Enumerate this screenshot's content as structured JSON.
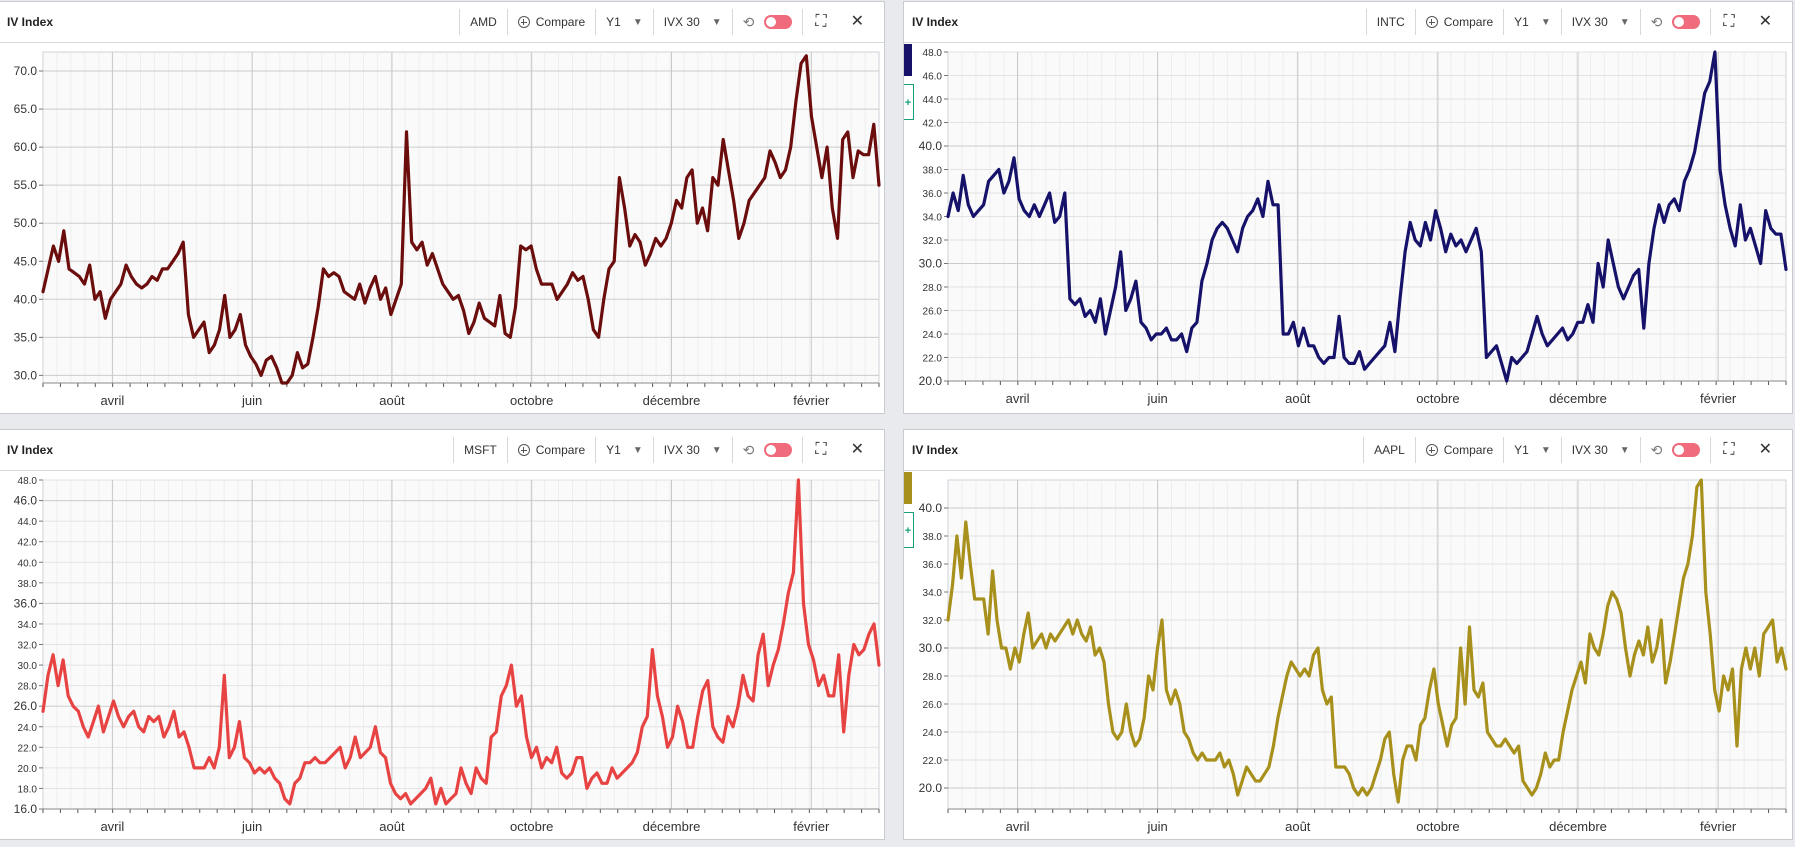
{
  "colors": {
    "amd": "#6b0d0d",
    "intc": "#16126a",
    "msft": "#e84343",
    "aapl": "#a8901c"
  },
  "icons": [
    "compare-plus-icon",
    "caret-down-icon",
    "sync-off-icon",
    "toggle-switch",
    "fullscreen-icon",
    "close-icon"
  ],
  "panels": [
    {
      "id": "amd",
      "title": "IV Index",
      "ticker": "AMD",
      "compare_label": "Compare",
      "period": "Y1",
      "measure": "IVX 30"
    },
    {
      "id": "intc",
      "title": "IV Index",
      "ticker": "INTC",
      "compare_label": "Compare",
      "period": "Y1",
      "measure": "IVX 30"
    },
    {
      "id": "msft",
      "title": "IV Index",
      "ticker": "MSFT",
      "compare_label": "Compare",
      "period": "Y1",
      "measure": "IVX 30"
    },
    {
      "id": "aapl",
      "title": "IV Index",
      "ticker": "AAPL",
      "compare_label": "Compare",
      "period": "Y1",
      "measure": "IVX 30"
    }
  ],
  "chart_data": [
    {
      "type": "line",
      "series": [
        {
          "name": "AMD"
        }
      ],
      "x_tick_labels": [
        "avril",
        "juin",
        "août",
        "octobre",
        "décembre",
        "février"
      ],
      "ylim": [
        29.0,
        72.5
      ],
      "y_tick_labels": [
        "30.0",
        "35.0",
        "40.0",
        "45.0",
        "50.0",
        "55.0",
        "60.0",
        "65.0",
        "70.0"
      ],
      "grid": true,
      "values": [
        41,
        44,
        47,
        45,
        49,
        44,
        43.5,
        43,
        42,
        44.5,
        40,
        41,
        37.5,
        40,
        41,
        42,
        44.5,
        43,
        42,
        41.5,
        42,
        43,
        42.5,
        44,
        44,
        45,
        46,
        47.5,
        38,
        35,
        36,
        37,
        33,
        34,
        36,
        40.5,
        35,
        36,
        38,
        34,
        32.5,
        31.5,
        30,
        32,
        32.5,
        31,
        29,
        29,
        30,
        33,
        31,
        31.5,
        35,
        39,
        44,
        43,
        43.5,
        43,
        41,
        40.5,
        40,
        42,
        39.5,
        41.5,
        43,
        40,
        41.5,
        38,
        40,
        42,
        62,
        47.5,
        46.5,
        47.5,
        44.5,
        46,
        44,
        42,
        41,
        40,
        40.5,
        38.5,
        35.5,
        37,
        39.5,
        37.5,
        37,
        36.5,
        40.5,
        35.5,
        35,
        39,
        47,
        46.5,
        47,
        44,
        42,
        42,
        42,
        40,
        41,
        42,
        43.5,
        42.5,
        43,
        40,
        36,
        35,
        40,
        44,
        45,
        56,
        52,
        47,
        48.5,
        47.5,
        44.5,
        46,
        48,
        47,
        48,
        50,
        53,
        52,
        56,
        57,
        50,
        52,
        49,
        56,
        55,
        61,
        57,
        53,
        48,
        50,
        53,
        54,
        55,
        56,
        59.5,
        58,
        56,
        57,
        60,
        66,
        71,
        72,
        64,
        60,
        56,
        60,
        52,
        48,
        61,
        62,
        56,
        59.5,
        59,
        59,
        63,
        55
      ]
    },
    {
      "type": "line",
      "series": [
        {
          "name": "INTC"
        }
      ],
      "x_tick_labels": [
        "avril",
        "juin",
        "août",
        "octobre",
        "décembre",
        "février"
      ],
      "ylim": [
        20.0,
        48.0
      ],
      "y_tick_labels": [
        "20.0",
        "22.0",
        "24.0",
        "26.0",
        "28.0",
        "30.0",
        "32.0",
        "34.0",
        "36.0",
        "38.0",
        "40.0",
        "42.0",
        "44.0",
        "46.0",
        "48.0"
      ],
      "grid": true,
      "values": [
        34,
        36,
        34.5,
        37.5,
        35,
        34,
        34.5,
        35,
        37,
        37.5,
        38,
        36,
        37,
        39,
        35.5,
        34.5,
        34,
        35,
        34,
        35,
        36,
        33.5,
        34,
        36,
        27,
        26.5,
        27,
        25.5,
        26,
        25,
        27,
        24,
        26,
        28,
        31,
        26,
        27,
        28.5,
        25,
        24.5,
        23.5,
        24,
        24,
        24.5,
        23.5,
        23.5,
        24,
        22.5,
        24.5,
        25,
        28.5,
        30,
        32,
        33,
        33.5,
        33,
        32,
        31,
        33,
        34,
        34.5,
        35.5,
        34,
        37,
        35,
        35,
        24,
        24,
        25,
        23,
        24.5,
        23,
        23,
        22,
        21.5,
        22,
        22,
        25.5,
        22,
        21.5,
        21.5,
        22.5,
        21,
        21.5,
        22,
        22.5,
        23,
        25,
        22.5,
        27,
        31,
        33.5,
        32,
        31.5,
        33.5,
        32,
        34.5,
        33,
        31,
        32.5,
        31.5,
        32,
        31,
        32,
        33,
        31,
        22,
        22.5,
        23,
        21.5,
        20,
        22,
        21.5,
        22,
        22.5,
        24,
        25.5,
        24,
        23,
        23.5,
        24,
        24.5,
        23.5,
        24,
        25,
        25,
        26.5,
        25,
        30,
        28,
        32,
        30,
        28,
        27,
        28,
        29,
        29.5,
        24.5,
        30,
        33,
        35,
        33.5,
        35,
        35.5,
        34.5,
        37,
        38,
        39.5,
        42,
        44.5,
        45.5,
        48,
        38,
        35,
        33,
        31.5,
        35,
        32,
        33,
        31.5,
        30,
        34.5,
        33,
        32.5,
        32.5,
        29.5
      ]
    },
    {
      "type": "line",
      "series": [
        {
          "name": "MSFT"
        }
      ],
      "x_tick_labels": [
        "avril",
        "juin",
        "août",
        "octobre",
        "décembre",
        "février"
      ],
      "ylim": [
        16.0,
        48.0
      ],
      "y_tick_labels": [
        "16.0",
        "18.0",
        "20.0",
        "22.0",
        "24.0",
        "26.0",
        "28.0",
        "30.0",
        "32.0",
        "34.0",
        "36.0",
        "38.0",
        "40.0",
        "42.0",
        "44.0",
        "46.0",
        "48.0"
      ],
      "grid": true,
      "values": [
        25.5,
        29,
        31,
        28,
        30.5,
        27,
        26,
        25.5,
        24,
        23,
        24.5,
        26,
        23.5,
        25,
        26.5,
        25,
        24,
        25,
        25.5,
        24,
        23.5,
        25,
        24.5,
        25,
        23,
        24,
        25.5,
        23,
        23.5,
        22,
        20,
        20,
        20,
        21,
        20,
        22,
        29,
        21,
        22,
        24.5,
        21,
        20.5,
        19.5,
        20,
        19.5,
        20,
        19,
        18.5,
        17,
        16.5,
        18.5,
        19,
        20.5,
        20.5,
        21,
        20.5,
        20.5,
        21,
        21.5,
        22,
        20,
        21,
        23,
        21,
        21.5,
        22,
        24,
        21.5,
        21,
        18.5,
        17.5,
        17,
        17.5,
        16.5,
        17,
        17.5,
        18,
        19,
        16.5,
        18,
        16.5,
        17,
        17.5,
        20,
        18.5,
        17.5,
        20,
        19,
        18.5,
        23,
        23.5,
        27,
        28,
        30,
        26,
        27,
        23,
        21,
        22,
        20,
        21,
        20.5,
        22,
        19.5,
        19,
        19.5,
        21,
        21,
        18,
        19,
        19.5,
        18.5,
        18.5,
        20,
        19,
        19.5,
        20,
        20.5,
        21.5,
        24,
        25,
        31.5,
        27,
        25,
        22,
        23,
        26,
        24.5,
        22,
        22,
        25,
        27.5,
        28.5,
        24,
        23,
        22.5,
        25,
        24,
        26,
        29,
        27,
        26.5,
        31,
        33,
        28,
        30,
        31.5,
        34,
        37,
        39,
        48,
        36,
        32,
        30.5,
        28,
        29,
        27,
        27,
        31,
        23.5,
        29,
        32,
        31,
        31.5,
        33,
        34,
        30
      ]
    },
    {
      "type": "line",
      "series": [
        {
          "name": "AAPL"
        }
      ],
      "x_tick_labels": [
        "avril",
        "juin",
        "août",
        "octobre",
        "décembre",
        "février"
      ],
      "ylim": [
        18.5,
        42.0
      ],
      "y_tick_labels": [
        "20.0",
        "22.0",
        "24.0",
        "26.0",
        "28.0",
        "30.0",
        "32.0",
        "34.0",
        "36.0",
        "38.0",
        "40.0"
      ],
      "grid": true,
      "values": [
        32,
        34.5,
        38,
        35,
        39,
        36,
        33.5,
        33.5,
        33.5,
        31,
        35.5,
        32,
        30,
        30,
        28.5,
        30,
        29,
        31,
        32.5,
        30,
        30.5,
        31,
        30,
        31,
        30.5,
        31,
        31.5,
        32,
        31,
        32,
        31,
        30.5,
        31.5,
        29.5,
        30,
        29,
        26,
        24,
        23.5,
        24,
        26,
        24,
        23,
        23.5,
        25,
        28,
        27,
        30,
        32,
        27,
        26,
        27,
        26,
        24,
        23.5,
        22.5,
        22,
        22.5,
        22,
        22,
        22,
        22.5,
        21.5,
        22,
        21,
        19.5,
        20.5,
        21.5,
        21,
        20.5,
        20.5,
        21,
        21.5,
        23,
        25,
        26.5,
        28,
        29,
        28.5,
        28,
        28.5,
        28,
        29.5,
        30,
        27,
        26,
        26.5,
        21.5,
        21.5,
        21.5,
        21,
        20,
        19.5,
        20,
        19.5,
        20,
        21,
        22,
        23.5,
        24,
        21,
        19,
        22,
        23,
        23,
        22,
        24.5,
        25,
        27,
        28.5,
        26,
        24.5,
        23,
        24.5,
        25,
        30,
        26,
        31.5,
        27,
        26.5,
        27.5,
        24,
        23.5,
        23,
        23,
        23.5,
        23,
        22.5,
        23,
        20.5,
        20,
        19.5,
        20,
        21,
        22.5,
        21.5,
        22,
        22,
        24,
        25.5,
        27,
        28,
        29,
        27.5,
        31,
        30,
        29.5,
        31,
        33,
        34,
        33.5,
        32.5,
        30,
        28,
        29.5,
        30.5,
        29.5,
        31.5,
        29,
        30,
        32,
        27.5,
        29,
        31,
        33,
        35,
        36,
        38,
        41.5,
        42,
        34,
        31,
        27,
        25.5,
        28,
        27,
        28.5,
        23,
        28.5,
        30,
        28.5,
        30,
        28,
        31,
        31.5,
        32,
        29,
        30,
        28.5
      ]
    }
  ]
}
